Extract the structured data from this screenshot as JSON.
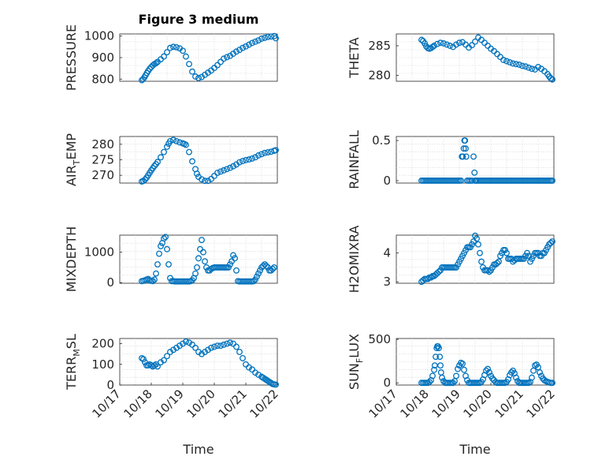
{
  "figure": {
    "title": "Figure 3 medium",
    "marker_color": "#0072BD"
  },
  "chart_data": [
    {
      "type": "scatter",
      "id": "pressure",
      "ylabel": "PRESSURE",
      "ylabel_base": "PRESSURE",
      "ylabel_sub": "",
      "ylabel_tail": "",
      "ylim": [
        790,
        1010
      ],
      "yticks": [
        800,
        900,
        1000
      ],
      "yticklabels": [
        "800",
        "900",
        "1000"
      ],
      "xlim": [
        0,
        5
      ],
      "xticks": [],
      "xlabel": "",
      "x": [
        0.7,
        0.74,
        0.78,
        0.82,
        0.86,
        0.9,
        0.95,
        1.0,
        1.05,
        1.1,
        1.15,
        1.2,
        1.3,
        1.4,
        1.5,
        1.6,
        1.7,
        1.8,
        1.9,
        2.0,
        2.1,
        2.2,
        2.3,
        2.4,
        2.5,
        2.6,
        2.7,
        2.8,
        2.9,
        3.0,
        3.1,
        3.2,
        3.3,
        3.4,
        3.5,
        3.6,
        3.7,
        3.8,
        3.9,
        4.0,
        4.1,
        4.2,
        4.3,
        4.4,
        4.5,
        4.6,
        4.7,
        4.8,
        4.9,
        4.95
      ],
      "y": [
        795,
        800,
        808,
        818,
        828,
        838,
        848,
        856,
        864,
        870,
        874,
        880,
        892,
        905,
        925,
        945,
        950,
        948,
        943,
        932,
        905,
        870,
        835,
        812,
        805,
        810,
        820,
        830,
        840,
        852,
        865,
        880,
        895,
        902,
        908,
        918,
        928,
        936,
        945,
        952,
        960,
        968,
        974,
        980,
        988,
        992,
        996,
        998,
        1000,
        990
      ]
    },
    {
      "type": "scatter",
      "id": "theta",
      "ylabel": "THETA",
      "ylabel_base": "THETA",
      "ylabel_sub": "",
      "ylabel_tail": "",
      "ylim": [
        279,
        287
      ],
      "yticks": [
        280,
        285
      ],
      "yticklabels": [
        "280",
        "285"
      ],
      "xlim": [
        0,
        5
      ],
      "xticks": [],
      "xlabel": "",
      "x": [
        0.8,
        0.85,
        0.9,
        0.95,
        1.0,
        1.05,
        1.1,
        1.15,
        1.2,
        1.3,
        1.4,
        1.5,
        1.6,
        1.7,
        1.8,
        1.9,
        2.0,
        2.1,
        2.2,
        2.3,
        2.4,
        2.5,
        2.6,
        2.7,
        2.8,
        2.9,
        3.0,
        3.1,
        3.2,
        3.3,
        3.4,
        3.5,
        3.6,
        3.7,
        3.8,
        3.9,
        4.0,
        4.1,
        4.2,
        4.3,
        4.4,
        4.5,
        4.6,
        4.7,
        4.8,
        4.85,
        4.9,
        4.95
      ],
      "y": [
        286,
        285.8,
        285.4,
        284.9,
        284.6,
        284.5,
        284.6,
        284.8,
        285.0,
        285.3,
        285.5,
        285.4,
        285.2,
        285.0,
        284.8,
        285.2,
        285.5,
        285.6,
        285.2,
        284.7,
        285.1,
        285.7,
        286.4,
        286.0,
        285.5,
        285.0,
        284.5,
        284.1,
        283.6,
        283.1,
        282.6,
        282.4,
        282.2,
        282.0,
        281.9,
        281.8,
        281.6,
        281.5,
        281.3,
        281.1,
        281.0,
        281.4,
        281.1,
        280.7,
        280.2,
        279.8,
        279.5,
        279.3
      ]
    },
    {
      "type": "scatter",
      "id": "air-temp",
      "ylabel": "AIR_TEMP",
      "ylabel_base": "AIR",
      "ylabel_sub": "T",
      "ylabel_tail": "EMP",
      "ylim": [
        267.5,
        282.5
      ],
      "yticks": [
        270,
        275,
        280
      ],
      "yticklabels": [
        "270",
        "275",
        "280"
      ],
      "xlim": [
        0,
        5
      ],
      "xticks": [],
      "xlabel": "",
      "x": [
        0.7,
        0.75,
        0.8,
        0.85,
        0.9,
        0.95,
        1.0,
        1.05,
        1.1,
        1.15,
        1.2,
        1.3,
        1.4,
        1.5,
        1.55,
        1.6,
        1.7,
        1.8,
        1.9,
        2.0,
        2.05,
        2.1,
        2.2,
        2.3,
        2.4,
        2.45,
        2.5,
        2.6,
        2.7,
        2.8,
        2.9,
        3.0,
        3.1,
        3.2,
        3.3,
        3.4,
        3.5,
        3.6,
        3.7,
        3.8,
        3.9,
        4.0,
        4.1,
        4.2,
        4.3,
        4.4,
        4.5,
        4.6,
        4.7,
        4.8,
        4.9,
        4.95
      ],
      "y": [
        268,
        268.2,
        268.6,
        269.2,
        270,
        270.8,
        271.6,
        272.3,
        273,
        273.6,
        274.3,
        275.8,
        277.5,
        279.2,
        280.2,
        281,
        281.4,
        281,
        280.6,
        280.3,
        280.1,
        279.8,
        277.5,
        274.5,
        272,
        270.5,
        269.5,
        268.7,
        268.2,
        268.2,
        268.8,
        269.8,
        270.8,
        271.2,
        271.6,
        272,
        272.4,
        272.9,
        273.5,
        274.2,
        274.6,
        274.9,
        275.1,
        275.4,
        275.8,
        276.4,
        276.8,
        277.2,
        277.4,
        277.6,
        277.9,
        278.1
      ]
    },
    {
      "type": "scatter",
      "id": "rainfall",
      "ylabel": "RAINFALL",
      "ylabel_base": "RAINFALL",
      "ylabel_sub": "",
      "ylabel_tail": "",
      "ylim": [
        -0.03,
        0.55
      ],
      "yticks": [
        0,
        0.5
      ],
      "yticklabels": [
        "0",
        "0.5"
      ],
      "xlim": [
        0,
        5
      ],
      "xticks": [],
      "xlabel": "",
      "x": [
        0.8,
        0.85,
        0.9,
        0.95,
        1.0,
        1.05,
        1.1,
        1.15,
        1.2,
        1.25,
        1.3,
        1.35,
        1.4,
        1.45,
        1.5,
        1.55,
        1.6,
        1.65,
        1.7,
        1.75,
        1.8,
        1.85,
        1.9,
        1.95,
        2.0,
        2.05,
        2.08,
        2.11,
        2.14,
        2.16,
        2.18,
        2.2,
        2.22,
        2.25,
        2.3,
        2.35,
        2.4,
        2.45,
        2.48,
        2.5,
        2.52,
        2.55,
        2.6,
        2.65,
        2.7,
        2.75,
        2.8,
        2.85,
        2.9,
        2.95,
        3.0,
        3.05,
        3.1,
        3.15,
        3.2,
        3.25,
        3.3,
        3.35,
        3.4,
        3.45,
        3.5,
        3.55,
        3.6,
        3.65,
        3.7,
        3.75,
        3.8,
        3.85,
        3.9,
        3.95,
        4.0,
        4.05,
        4.1,
        4.15,
        4.2,
        4.25,
        4.3,
        4.35,
        4.4,
        4.45,
        4.5,
        4.55,
        4.6,
        4.65,
        4.7,
        4.75,
        4.8,
        4.85,
        4.9,
        4.95
      ],
      "y": [
        0,
        0,
        0,
        0,
        0,
        0,
        0,
        0,
        0,
        0,
        0,
        0,
        0,
        0,
        0,
        0,
        0,
        0,
        0,
        0,
        0,
        0,
        0,
        0,
        0,
        0,
        0.3,
        0.3,
        0.4,
        0.5,
        0.5,
        0.4,
        0.3,
        0,
        0,
        0,
        0,
        0.3,
        0.1,
        0,
        0,
        0,
        0,
        0,
        0,
        0,
        0,
        0,
        0,
        0,
        0,
        0,
        0,
        0,
        0,
        0,
        0,
        0,
        0,
        0,
        0,
        0,
        0,
        0,
        0,
        0,
        0,
        0,
        0,
        0,
        0,
        0,
        0,
        0,
        0,
        0,
        0,
        0,
        0,
        0,
        0,
        0,
        0,
        0,
        0,
        0,
        0,
        0,
        0,
        0
      ]
    },
    {
      "type": "scatter",
      "id": "mixdepth",
      "ylabel": "MIXDEPTH",
      "ylabel_base": "MIXDEPTH",
      "ylabel_sub": "",
      "ylabel_tail": "",
      "ylim": [
        -20,
        1560
      ],
      "yticks": [
        0,
        1000
      ],
      "yticklabels": [
        "0",
        "1000"
      ],
      "xlim": [
        0,
        5
      ],
      "xticks": [],
      "xlabel": "",
      "x": [
        0.7,
        0.75,
        0.8,
        0.85,
        0.9,
        0.95,
        1.0,
        1.05,
        1.1,
        1.15,
        1.2,
        1.25,
        1.3,
        1.35,
        1.4,
        1.45,
        1.5,
        1.55,
        1.6,
        1.65,
        1.7,
        1.75,
        1.8,
        1.85,
        1.9,
        1.95,
        2.0,
        2.05,
        2.1,
        2.15,
        2.2,
        2.25,
        2.3,
        2.35,
        2.4,
        2.45,
        2.5,
        2.55,
        2.6,
        2.65,
        2.7,
        2.75,
        2.8,
        2.85,
        2.9,
        2.95,
        3.0,
        3.05,
        3.1,
        3.15,
        3.2,
        3.25,
        3.3,
        3.35,
        3.4,
        3.45,
        3.5,
        3.55,
        3.6,
        3.65,
        3.7,
        3.75,
        3.8,
        3.85,
        3.9,
        3.95,
        4.0,
        4.05,
        4.1,
        4.15,
        4.2,
        4.25,
        4.3,
        4.35,
        4.4,
        4.45,
        4.5,
        4.55,
        4.6,
        4.65,
        4.7,
        4.75,
        4.8,
        4.85,
        4.9
      ],
      "y": [
        50,
        60,
        80,
        100,
        120,
        80,
        60,
        50,
        100,
        300,
        600,
        950,
        1200,
        1300,
        1450,
        1500,
        1100,
        600,
        150,
        50,
        50,
        40,
        40,
        40,
        40,
        40,
        40,
        40,
        40,
        40,
        40,
        50,
        80,
        150,
        300,
        500,
        800,
        1100,
        1400,
        1000,
        700,
        500,
        400,
        400,
        450,
        480,
        500,
        500,
        500,
        500,
        500,
        500,
        500,
        500,
        500,
        500,
        600,
        700,
        900,
        800,
        400,
        50,
        40,
        40,
        40,
        40,
        40,
        40,
        40,
        40,
        40,
        50,
        100,
        200,
        300,
        400,
        500,
        550,
        600,
        550,
        500,
        400,
        400,
        450,
        500
      ]
    },
    {
      "type": "scatter",
      "id": "h2omixra",
      "ylabel": "H2OMIXRA",
      "ylabel_base": "H2OMIXRA",
      "ylabel_sub": "",
      "ylabel_tail": "",
      "ylim": [
        2.95,
        4.62
      ],
      "yticks": [
        3,
        4
      ],
      "yticklabels": [
        "3",
        "4"
      ],
      "xlim": [
        0,
        5
      ],
      "xticks": [],
      "xlabel": "",
      "x": [
        0.8,
        0.85,
        0.9,
        0.95,
        1.0,
        1.05,
        1.1,
        1.15,
        1.2,
        1.25,
        1.3,
        1.35,
        1.4,
        1.45,
        1.5,
        1.55,
        1.6,
        1.65,
        1.7,
        1.75,
        1.8,
        1.85,
        1.9,
        1.95,
        2.0,
        2.05,
        2.1,
        2.15,
        2.2,
        2.25,
        2.3,
        2.35,
        2.4,
        2.45,
        2.5,
        2.55,
        2.6,
        2.65,
        2.7,
        2.75,
        2.8,
        2.85,
        2.9,
        2.95,
        3.0,
        3.05,
        3.1,
        3.15,
        3.2,
        3.25,
        3.3,
        3.35,
        3.4,
        3.45,
        3.5,
        3.55,
        3.6,
        3.65,
        3.7,
        3.75,
        3.8,
        3.85,
        3.9,
        3.95,
        4.0,
        4.05,
        4.1,
        4.15,
        4.2,
        4.25,
        4.3,
        4.35,
        4.4,
        4.45,
        4.5,
        4.55,
        4.6,
        4.65,
        4.7,
        4.75,
        4.8,
        4.85,
        4.9,
        4.95
      ],
      "y": [
        3.0,
        3.05,
        3.1,
        3.1,
        3.1,
        3.15,
        3.15,
        3.2,
        3.2,
        3.25,
        3.3,
        3.35,
        3.4,
        3.5,
        3.5,
        3.5,
        3.5,
        3.5,
        3.5,
        3.5,
        3.5,
        3.5,
        3.5,
        3.6,
        3.7,
        3.8,
        3.9,
        4.0,
        4.1,
        4.2,
        4.2,
        4.2,
        4.3,
        4.4,
        4.6,
        4.5,
        4.3,
        4.0,
        3.7,
        3.5,
        3.4,
        3.4,
        3.4,
        3.35,
        3.4,
        3.5,
        3.6,
        3.6,
        3.65,
        3.7,
        3.9,
        4.0,
        4.1,
        4.1,
        4.0,
        3.8,
        3.8,
        3.8,
        3.7,
        3.75,
        3.8,
        3.8,
        3.8,
        3.8,
        3.8,
        3.8,
        3.9,
        4.0,
        3.9,
        3.7,
        3.8,
        3.9,
        4.0,
        4.0,
        4.0,
        3.9,
        3.9,
        4.0,
        4.0,
        4.1,
        4.2,
        4.3,
        4.35,
        4.4
      ]
    },
    {
      "type": "scatter",
      "id": "terr-msl",
      "ylabel": "TERR_MSL",
      "ylabel_base": "TERR",
      "ylabel_sub": "M",
      "ylabel_tail": "SL",
      "ylim": [
        0,
        225
      ],
      "yticks": [
        0,
        100,
        200
      ],
      "yticklabels": [
        "0",
        "100",
        "200"
      ],
      "xlim": [
        0,
        5
      ],
      "xticks": [
        0,
        1,
        2,
        3,
        4,
        5
      ],
      "xticklabels": [
        "10/17",
        "10/18",
        "10/19",
        "10/20",
        "10/21",
        "10/22"
      ],
      "xlabel": "Time",
      "x": [
        0.7,
        0.75,
        0.8,
        0.85,
        0.9,
        0.95,
        1.0,
        1.05,
        1.1,
        1.15,
        1.2,
        1.3,
        1.4,
        1.5,
        1.6,
        1.7,
        1.8,
        1.9,
        2.0,
        2.1,
        2.2,
        2.3,
        2.4,
        2.5,
        2.6,
        2.7,
        2.8,
        2.9,
        3.0,
        3.1,
        3.2,
        3.3,
        3.4,
        3.5,
        3.6,
        3.7,
        3.8,
        3.9,
        4.0,
        4.1,
        4.2,
        4.3,
        4.4,
        4.5,
        4.55,
        4.6,
        4.65,
        4.7,
        4.75,
        4.8,
        4.85,
        4.9,
        4.95
      ],
      "y": [
        130,
        125,
        110,
        95,
        95,
        100,
        95,
        90,
        95,
        100,
        90,
        110,
        120,
        140,
        160,
        170,
        180,
        190,
        200,
        210,
        205,
        195,
        180,
        160,
        150,
        160,
        170,
        180,
        185,
        190,
        190,
        195,
        200,
        205,
        200,
        185,
        160,
        130,
        100,
        85,
        75,
        60,
        50,
        40,
        35,
        30,
        25,
        20,
        15,
        10,
        5,
        3,
        2
      ]
    },
    {
      "type": "scatter",
      "id": "sun-flux",
      "ylabel": "SUN_FLUX",
      "ylabel_base": "SUN",
      "ylabel_sub": "F",
      "ylabel_tail": "LUX",
      "ylim": [
        -25,
        510
      ],
      "yticks": [
        0,
        500
      ],
      "yticklabels": [
        "0",
        "500"
      ],
      "xlim": [
        0,
        5
      ],
      "xticks": [
        0,
        1,
        2,
        3,
        4,
        5
      ],
      "xticklabels": [
        "10/17",
        "10/18",
        "10/19",
        "10/20",
        "10/21",
        "10/22"
      ],
      "xlabel": "Time",
      "x": [
        0.8,
        0.85,
        0.9,
        0.95,
        1.0,
        1.05,
        1.1,
        1.15,
        1.2,
        1.22,
        1.25,
        1.28,
        1.3,
        1.32,
        1.35,
        1.38,
        1.4,
        1.42,
        1.45,
        1.5,
        1.55,
        1.6,
        1.65,
        1.7,
        1.75,
        1.8,
        1.85,
        1.9,
        1.95,
        2.0,
        2.05,
        2.1,
        2.15,
        2.2,
        2.25,
        2.3,
        2.35,
        2.4,
        2.45,
        2.5,
        2.55,
        2.6,
        2.65,
        2.7,
        2.75,
        2.8,
        2.85,
        2.9,
        2.95,
        3.0,
        3.05,
        3.1,
        3.15,
        3.2,
        3.25,
        3.3,
        3.35,
        3.4,
        3.45,
        3.5,
        3.55,
        3.6,
        3.65,
        3.7,
        3.75,
        3.8,
        3.85,
        3.9,
        3.95,
        4.0,
        4.05,
        4.1,
        4.15,
        4.2,
        4.25,
        4.3,
        4.35,
        4.4,
        4.45,
        4.5,
        4.55,
        4.6,
        4.65,
        4.7,
        4.75,
        4.8,
        4.85,
        4.9,
        4.95
      ],
      "y": [
        0,
        0,
        0,
        0,
        0,
        10,
        30,
        80,
        150,
        200,
        300,
        400,
        420,
        420,
        400,
        300,
        200,
        120,
        60,
        20,
        0,
        0,
        0,
        0,
        0,
        0,
        20,
        80,
        160,
        200,
        230,
        220,
        150,
        80,
        30,
        0,
        0,
        0,
        0,
        0,
        0,
        0,
        0,
        10,
        40,
        90,
        140,
        160,
        120,
        80,
        50,
        30,
        10,
        0,
        0,
        0,
        0,
        0,
        0,
        10,
        40,
        90,
        120,
        140,
        110,
        60,
        20,
        0,
        0,
        0,
        0,
        0,
        0,
        0,
        10,
        60,
        140,
        200,
        210,
        180,
        120,
        80,
        50,
        30,
        20,
        10,
        5,
        0,
        0
      ]
    }
  ]
}
